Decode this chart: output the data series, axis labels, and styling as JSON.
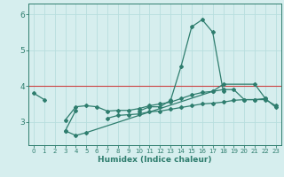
{
  "xlabel": "Humidex (Indice chaleur)",
  "ylabel": "",
  "background_color": "#d6eeee",
  "grid_color": "#b8dede",
  "line_color": "#2e7d6e",
  "x": [
    0,
    1,
    2,
    3,
    4,
    5,
    6,
    7,
    8,
    9,
    10,
    11,
    12,
    13,
    14,
    15,
    16,
    17,
    18,
    19,
    20,
    21,
    22,
    23
  ],
  "line1": [
    3.8,
    3.62,
    null,
    null,
    null,
    null,
    null,
    null,
    null,
    null,
    3.3,
    3.42,
    3.42,
    3.6,
    4.55,
    5.65,
    5.85,
    5.5,
    3.85,
    null,
    null,
    null,
    null,
    null
  ],
  "line2": [
    null,
    null,
    null,
    3.05,
    3.42,
    3.45,
    3.42,
    3.3,
    3.32,
    3.32,
    3.37,
    3.45,
    3.5,
    3.55,
    3.65,
    3.75,
    3.82,
    3.85,
    3.9,
    3.9,
    3.62,
    3.62,
    3.65,
    3.4
  ],
  "line3": [
    null,
    null,
    null,
    2.75,
    3.32,
    null,
    null,
    3.1,
    3.18,
    3.2,
    3.22,
    3.28,
    3.3,
    3.35,
    3.4,
    3.45,
    3.5,
    3.52,
    3.55,
    3.6,
    3.62,
    3.62,
    3.62,
    3.45
  ],
  "line4_x": [
    3,
    4,
    5,
    17,
    18,
    21,
    22
  ],
  "line4_y": [
    2.75,
    2.62,
    2.7,
    3.85,
    4.05,
    4.05,
    3.65
  ],
  "xlim": [
    -0.5,
    23.5
  ],
  "ylim": [
    2.35,
    6.3
  ],
  "yticks": [
    3,
    4,
    5,
    6
  ],
  "xticks": [
    0,
    1,
    2,
    3,
    4,
    5,
    6,
    7,
    8,
    9,
    10,
    11,
    12,
    13,
    14,
    15,
    16,
    17,
    18,
    19,
    20,
    21,
    22,
    23
  ],
  "hline_y": 4.0,
  "hline_color": "#cc4444"
}
